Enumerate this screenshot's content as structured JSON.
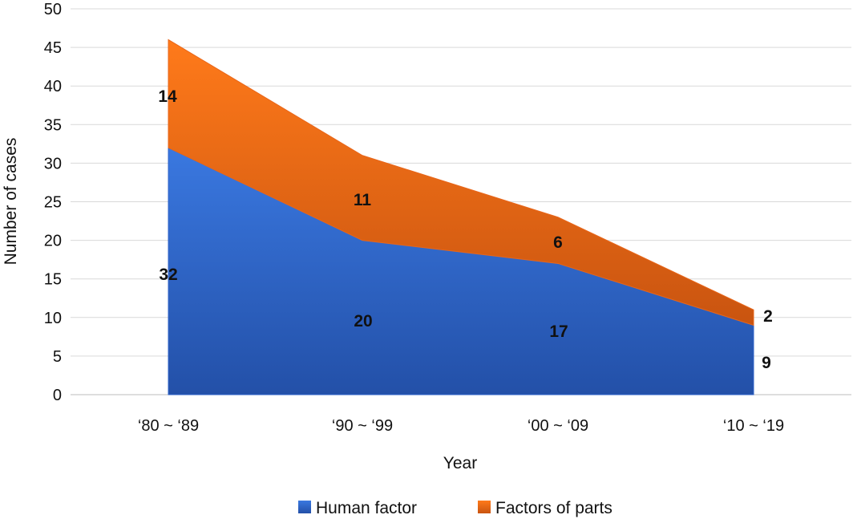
{
  "chart_data": {
    "type": "area",
    "stacked": true,
    "title": "",
    "xlabel": "Year",
    "ylabel": "Number of cases",
    "categories": [
      "‘80 ~ ‘89",
      "‘90 ~ ‘99",
      "‘00 ~ ‘09",
      "‘10 ~ ‘19"
    ],
    "ylim": [
      0,
      50
    ],
    "yticks": [
      0,
      5,
      10,
      15,
      20,
      25,
      30,
      35,
      40,
      45,
      50
    ],
    "grid": true,
    "legend_position": "bottom",
    "series": [
      {
        "name": "Human factor",
        "values": [
          32,
          20,
          17,
          9
        ],
        "color": "#2f63c9"
      },
      {
        "name": "Factors of parts",
        "values": [
          14,
          11,
          6,
          2
        ],
        "color": "#e8661a"
      }
    ]
  }
}
